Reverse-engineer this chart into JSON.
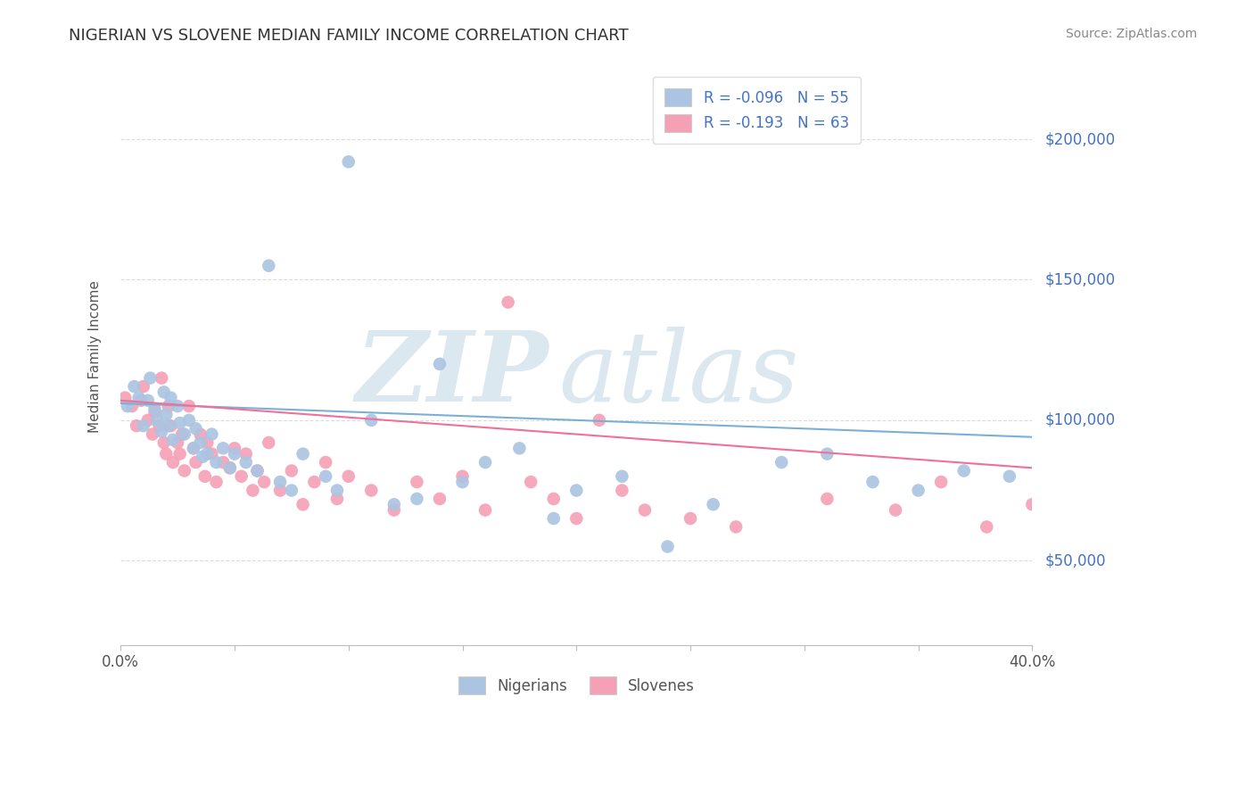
{
  "title": "NIGERIAN VS SLOVENE MEDIAN FAMILY INCOME CORRELATION CHART",
  "source": "Source: ZipAtlas.com",
  "ylabel": "Median Family Income",
  "xlim": [
    0.0,
    0.4
  ],
  "ylim": [
    20000,
    225000
  ],
  "yticks": [
    50000,
    100000,
    150000,
    200000
  ],
  "ytick_labels": [
    "$50,000",
    "$100,000",
    "$150,000",
    "$200,000"
  ],
  "xticks": [
    0.0,
    0.05,
    0.1,
    0.15,
    0.2,
    0.25,
    0.3,
    0.35,
    0.4
  ],
  "xtick_labels": [
    "0.0%",
    "",
    "",
    "",
    "",
    "",
    "",
    "",
    "40.0%"
  ],
  "nigerian_R": -0.096,
  "nigerian_N": 55,
  "slovene_R": -0.193,
  "slovene_N": 63,
  "nigerian_color": "#aac4e2",
  "slovene_color": "#f5a0b5",
  "nigerian_line_color": "#7ab0d8",
  "slovene_line_color": "#f07098",
  "watermark_color": "#dce8f0",
  "background_color": "#ffffff",
  "grid_color": "#cccccc",
  "nigerian_x": [
    0.003,
    0.006,
    0.008,
    0.01,
    0.012,
    0.013,
    0.015,
    0.016,
    0.018,
    0.019,
    0.02,
    0.021,
    0.022,
    0.023,
    0.025,
    0.026,
    0.028,
    0.03,
    0.032,
    0.033,
    0.035,
    0.036,
    0.038,
    0.04,
    0.042,
    0.045,
    0.048,
    0.05,
    0.055,
    0.06,
    0.065,
    0.07,
    0.075,
    0.08,
    0.09,
    0.095,
    0.1,
    0.11,
    0.12,
    0.13,
    0.14,
    0.15,
    0.16,
    0.175,
    0.19,
    0.2,
    0.22,
    0.24,
    0.26,
    0.29,
    0.31,
    0.33,
    0.35,
    0.37,
    0.39
  ],
  "nigerian_y": [
    105000,
    112000,
    108000,
    98000,
    107000,
    115000,
    104000,
    100000,
    96000,
    110000,
    102000,
    98000,
    108000,
    93000,
    105000,
    99000,
    95000,
    100000,
    90000,
    97000,
    92000,
    87000,
    88000,
    95000,
    85000,
    90000,
    83000,
    88000,
    85000,
    82000,
    155000,
    78000,
    75000,
    88000,
    80000,
    75000,
    192000,
    100000,
    70000,
    72000,
    120000,
    78000,
    85000,
    90000,
    65000,
    75000,
    80000,
    55000,
    70000,
    85000,
    88000,
    78000,
    75000,
    82000,
    80000
  ],
  "slovene_x": [
    0.002,
    0.005,
    0.007,
    0.009,
    0.01,
    0.012,
    0.014,
    0.015,
    0.017,
    0.018,
    0.019,
    0.02,
    0.021,
    0.022,
    0.023,
    0.025,
    0.026,
    0.027,
    0.028,
    0.03,
    0.032,
    0.033,
    0.035,
    0.037,
    0.038,
    0.04,
    0.042,
    0.045,
    0.048,
    0.05,
    0.053,
    0.055,
    0.058,
    0.06,
    0.063,
    0.065,
    0.07,
    0.075,
    0.08,
    0.085,
    0.09,
    0.095,
    0.1,
    0.11,
    0.12,
    0.13,
    0.14,
    0.15,
    0.16,
    0.17,
    0.18,
    0.19,
    0.2,
    0.21,
    0.22,
    0.23,
    0.25,
    0.27,
    0.31,
    0.34,
    0.36,
    0.38,
    0.4
  ],
  "slovene_y": [
    108000,
    105000,
    98000,
    107000,
    112000,
    100000,
    95000,
    103000,
    98000,
    115000,
    92000,
    88000,
    105000,
    98000,
    85000,
    92000,
    88000,
    95000,
    82000,
    105000,
    90000,
    85000,
    95000,
    80000,
    92000,
    88000,
    78000,
    85000,
    83000,
    90000,
    80000,
    88000,
    75000,
    82000,
    78000,
    92000,
    75000,
    82000,
    70000,
    78000,
    85000,
    72000,
    80000,
    75000,
    68000,
    78000,
    72000,
    80000,
    68000,
    142000,
    78000,
    72000,
    65000,
    100000,
    75000,
    68000,
    65000,
    62000,
    72000,
    68000,
    78000,
    62000,
    70000
  ]
}
